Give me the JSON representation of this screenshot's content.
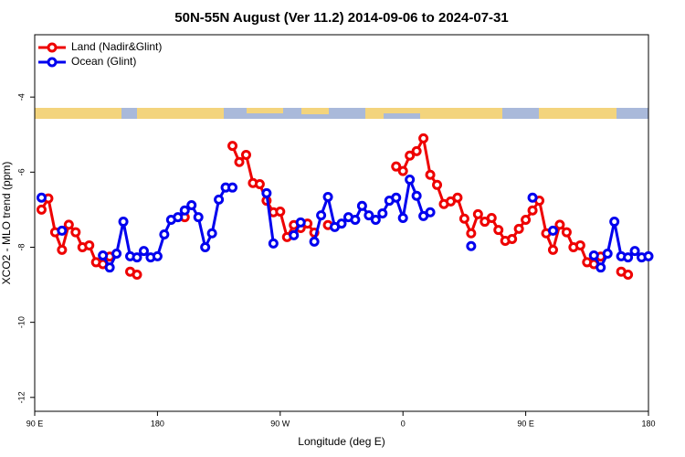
{
  "chart_data": {
    "type": "line",
    "title": "50N-55N August (Ver 11.2)   2014-09-06 to 2024-07-31",
    "x_label": "Longitude (deg E)",
    "y_label": "XCO2 - MLO trend (ppm)",
    "x": [
      95,
      100,
      105,
      110,
      115,
      120,
      125,
      130,
      135,
      140,
      145,
      150,
      155,
      160,
      165,
      170,
      175,
      180,
      185,
      190,
      195,
      200,
      205,
      210,
      215,
      220,
      225,
      230,
      235,
      240,
      245,
      250,
      255,
      260,
      265,
      270,
      275,
      280,
      285,
      290,
      295,
      300,
      305,
      310,
      315,
      320,
      325,
      330,
      335,
      340,
      345,
      350,
      355,
      360,
      365,
      370,
      375,
      380,
      385,
      390,
      395,
      400,
      405,
      410,
      415,
      420,
      425,
      430,
      435,
      440,
      445,
      450,
      455,
      460,
      465,
      470,
      475,
      480,
      485,
      490,
      495,
      500,
      505,
      510,
      515,
      520,
      525,
      530,
      535,
      540
    ],
    "series": [
      {
        "name": "Land (Nadir&Glint)",
        "color": "#ee0000",
        "values": [
          -7.0,
          -6.7,
          -7.6,
          -8.07,
          -7.4,
          -7.6,
          -8.0,
          -7.95,
          -8.4,
          -8.45,
          -8.25,
          null,
          null,
          -8.65,
          -8.73,
          null,
          null,
          null,
          null,
          null,
          null,
          -7.2,
          null,
          null,
          null,
          null,
          null,
          null,
          -5.3,
          -5.73,
          -5.54,
          -6.29,
          -6.32,
          -6.76,
          -7.07,
          -7.05,
          -7.73,
          -7.41,
          -7.49,
          -7.37,
          -7.61,
          null,
          -7.41,
          null,
          null,
          null,
          null,
          null,
          null,
          null,
          null,
          null,
          -5.85,
          -5.97,
          -5.56,
          -5.44,
          -5.1,
          -6.07,
          -6.34,
          -6.85,
          -6.78,
          -6.68,
          -7.24,
          -7.63,
          -7.12,
          -7.32,
          -7.22,
          -7.54,
          -7.83,
          -7.78,
          -7.51,
          -7.27,
          -7.02,
          -6.76,
          -7.63,
          -8.07,
          -7.4,
          -7.6,
          -8.0,
          -7.95,
          -8.4,
          -8.45,
          -8.25,
          null,
          null,
          -8.65,
          -8.73,
          null,
          null,
          null
        ]
      },
      {
        "name": "Ocean (Glint)",
        "color": "#0000ee",
        "values": [
          -6.68,
          null,
          null,
          -7.56,
          null,
          null,
          null,
          null,
          null,
          -8.22,
          -8.54,
          -8.17,
          -7.32,
          -8.24,
          -8.27,
          -8.1,
          -8.27,
          -8.24,
          -7.66,
          -7.27,
          -7.2,
          -7.02,
          -6.88,
          -7.2,
          -8.0,
          -7.63,
          -6.73,
          -6.41,
          -6.41,
          null,
          null,
          null,
          null,
          -6.56,
          -7.9,
          null,
          null,
          -7.68,
          -7.34,
          null,
          -7.85,
          -7.15,
          -6.66,
          -7.46,
          -7.37,
          -7.2,
          -7.27,
          -6.9,
          -7.15,
          -7.27,
          -7.1,
          -6.76,
          -6.68,
          -7.22,
          -6.2,
          -6.63,
          -7.17,
          -7.07,
          null,
          null,
          null,
          null,
          null,
          -7.97,
          null,
          null,
          null,
          null,
          null,
          null,
          null,
          null,
          -6.68,
          null,
          null,
          -7.56,
          null,
          null,
          null,
          null,
          null,
          -8.22,
          -8.54,
          -8.17,
          -7.32,
          -8.24,
          -8.27,
          -8.1,
          -8.27,
          -8.24
        ]
      }
    ],
    "xlim": [
      90,
      540
    ],
    "xticks": [
      {
        "value": 90,
        "label": "90 E"
      },
      180,
      {
        "value": 270,
        "label": "90 W"
      },
      {
        "value": 360,
        "label": "0"
      },
      {
        "value": 450,
        "label": "90 E"
      },
      {
        "value": 540,
        "label": "180"
      }
    ],
    "ylim": [
      -12.37,
      -2.34
    ],
    "yticks": [
      -4,
      -6,
      -8,
      -10,
      -12
    ],
    "legend": "top-left"
  }
}
